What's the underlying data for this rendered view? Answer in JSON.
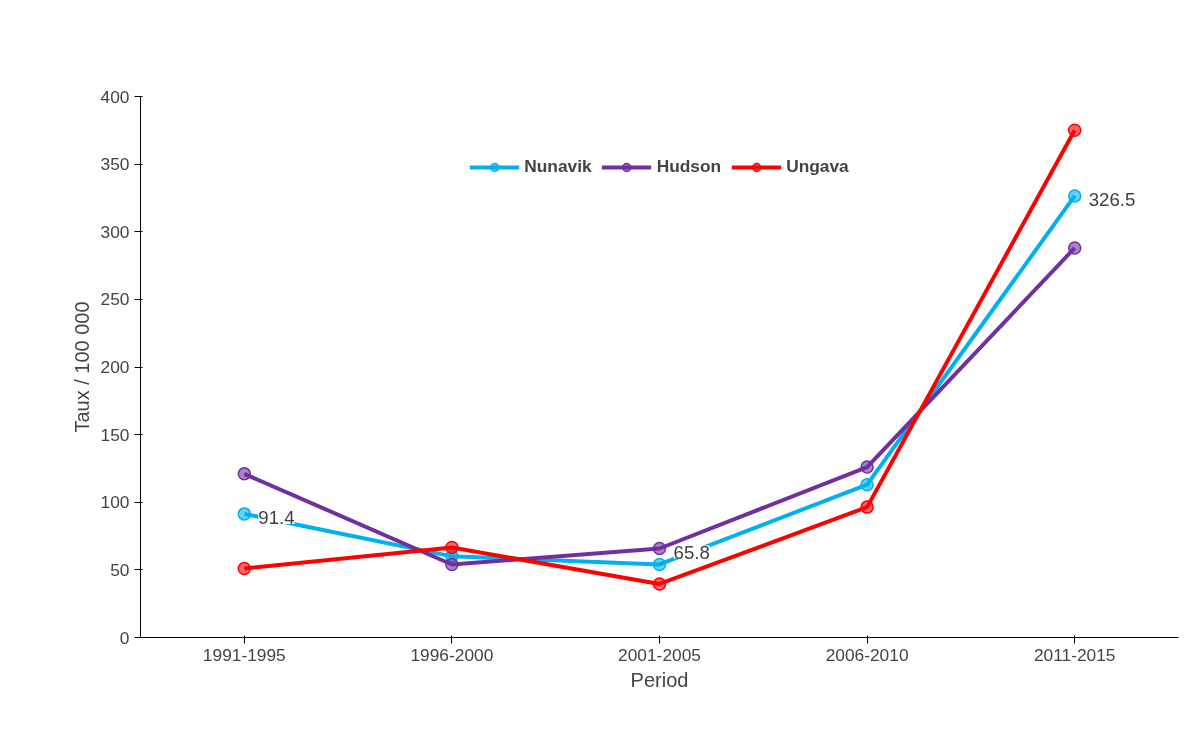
{
  "chart_data": {
    "type": "line",
    "xlabel": "Period",
    "ylabel": "Taux / 100 000",
    "categories": [
      "1991-1995",
      "1996-2000",
      "2001-2005",
      "2006-2010",
      "2011-2015"
    ],
    "series": [
      {
        "name": "Nunavik",
        "color": "#00b0f0",
        "values": [
          91.4,
          60,
          54,
          113,
          326.5
        ],
        "value_labels": [
          "91.4",
          null,
          null,
          null,
          "326.5"
        ]
      },
      {
        "name": "Hudson",
        "color": "#7030a0",
        "values": [
          121,
          54,
          65.8,
          126,
          288
        ],
        "value_labels": [
          null,
          null,
          "65.8",
          null,
          null
        ]
      },
      {
        "name": "Ungava",
        "color": "#ff0000",
        "values": [
          51,
          66.5,
          39.6,
          96.4,
          375
        ]
      }
    ],
    "ylim": [
      0,
      400
    ],
    "yticks": [
      0,
      50,
      100,
      150,
      200,
      250,
      300,
      350,
      400
    ],
    "grid": false,
    "legend": "top",
    "marker": "circle",
    "line_style": "solid"
  }
}
